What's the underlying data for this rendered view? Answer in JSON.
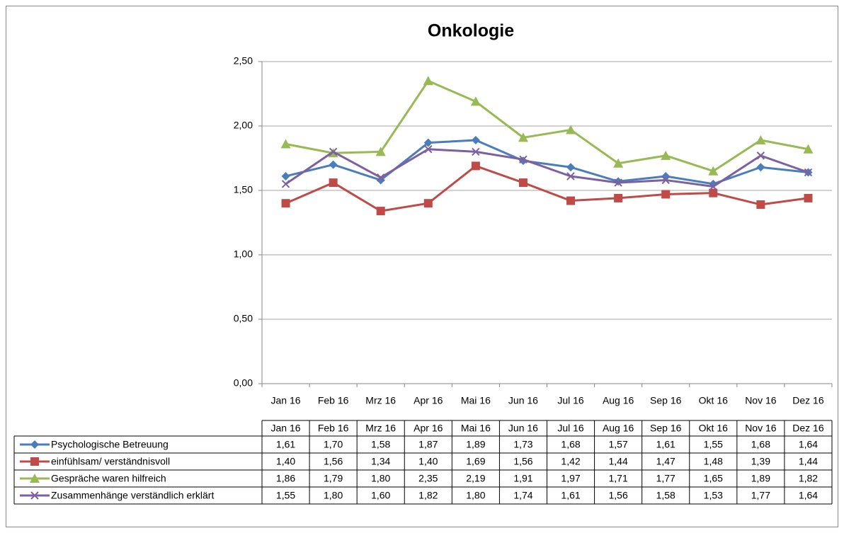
{
  "chart_data": {
    "type": "line",
    "title": "Onkologie",
    "categories": [
      "Jan 16",
      "Feb 16",
      "Mrz 16",
      "Apr 16",
      "Mai 16",
      "Jun 16",
      "Jul 16",
      "Aug 16",
      "Sep 16",
      "Okt 16",
      "Nov 16",
      "Dez 16"
    ],
    "ylim": [
      0,
      2.5
    ],
    "yticks": [
      {
        "value": 0,
        "label": "0,00"
      },
      {
        "value": 0.5,
        "label": "0,50"
      },
      {
        "value": 1,
        "label": "1,00"
      },
      {
        "value": 1.5,
        "label": "1,50"
      },
      {
        "value": 2,
        "label": "2,00"
      },
      {
        "value": 2.5,
        "label": "2,50"
      }
    ],
    "grid": true,
    "series": [
      {
        "name": "Psychologische  Betreuung",
        "color": "#4a7ebb",
        "marker": "diamond",
        "values": [
          1.61,
          1.7,
          1.58,
          1.87,
          1.89,
          1.73,
          1.68,
          1.57,
          1.61,
          1.55,
          1.68,
          1.64
        ],
        "value_labels": [
          "1,61",
          "1,70",
          "1,58",
          "1,87",
          "1,89",
          "1,73",
          "1,68",
          "1,57",
          "1,61",
          "1,55",
          "1,68",
          "1,64"
        ]
      },
      {
        "name": "einfühlsam/ verständnisvoll",
        "color": "#be4b48",
        "marker": "square",
        "values": [
          1.4,
          1.56,
          1.34,
          1.4,
          1.69,
          1.56,
          1.42,
          1.44,
          1.47,
          1.48,
          1.39,
          1.44
        ],
        "value_labels": [
          "1,40",
          "1,56",
          "1,34",
          "1,40",
          "1,69",
          "1,56",
          "1,42",
          "1,44",
          "1,47",
          "1,48",
          "1,39",
          "1,44"
        ]
      },
      {
        "name": "Gespräche waren hilfreich",
        "color": "#98b954",
        "marker": "triangle",
        "values": [
          1.86,
          1.79,
          1.8,
          2.35,
          2.19,
          1.91,
          1.97,
          1.71,
          1.77,
          1.65,
          1.89,
          1.82
        ],
        "value_labels": [
          "1,86",
          "1,79",
          "1,80",
          "2,35",
          "2,19",
          "1,91",
          "1,97",
          "1,71",
          "1,77",
          "1,65",
          "1,89",
          "1,82"
        ]
      },
      {
        "name": "Zusammenhänge verständlich erklärt",
        "color": "#7d60a0",
        "marker": "x",
        "values": [
          1.55,
          1.8,
          1.6,
          1.82,
          1.8,
          1.74,
          1.61,
          1.56,
          1.58,
          1.53,
          1.77,
          1.64
        ],
        "value_labels": [
          "1,55",
          "1,80",
          "1,60",
          "1,82",
          "1,80",
          "1,74",
          "1,61",
          "1,56",
          "1,58",
          "1,53",
          "1,77",
          "1,64"
        ]
      }
    ]
  }
}
